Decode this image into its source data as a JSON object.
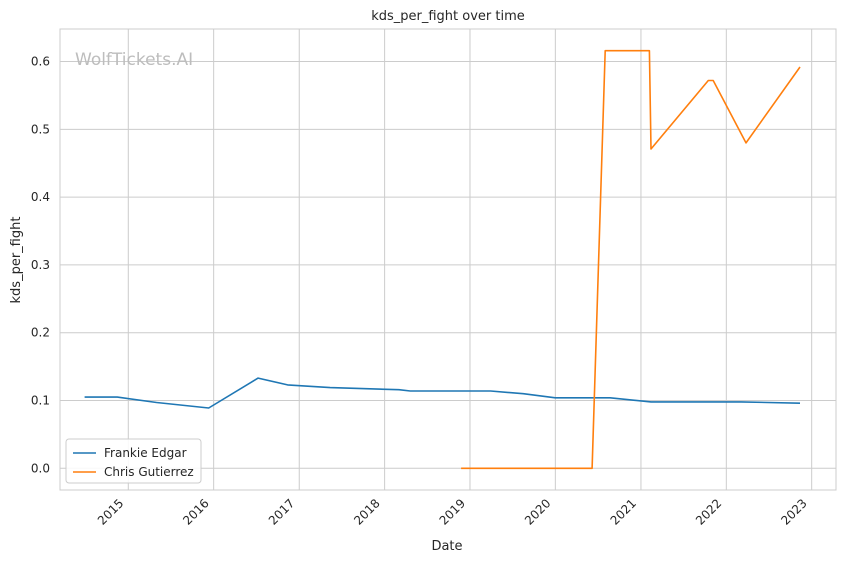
{
  "chart_data": {
    "type": "line",
    "title": "kds_per_fight over time",
    "xlabel": "Date",
    "ylabel": "kds_per_fight",
    "watermark": "WolfTickets.AI",
    "xlim": [
      "2014-03-15",
      "2023-04-15"
    ],
    "ylim": [
      -0.032,
      0.648
    ],
    "x_ticks": [
      "2015-01-01",
      "2016-01-01",
      "2017-01-01",
      "2018-01-01",
      "2019-01-01",
      "2020-01-01",
      "2021-01-01",
      "2022-01-01",
      "2023-01-01"
    ],
    "x_tick_labels": [
      "2015",
      "2016",
      "2017",
      "2018",
      "2019",
      "2020",
      "2021",
      "2022",
      "2023"
    ],
    "y_ticks": [
      0.0,
      0.1,
      0.2,
      0.3,
      0.4,
      0.5,
      0.6
    ],
    "y_tick_labels": [
      "0.0",
      "0.1",
      "0.2",
      "0.3",
      "0.4",
      "0.5",
      "0.6"
    ],
    "grid": true,
    "legend_position": "lower-left",
    "series": [
      {
        "name": "Frankie Edgar",
        "color": "#1f77b4",
        "x": [
          "2014-06-28",
          "2014-11-15",
          "2015-05-02",
          "2015-12-11",
          "2016-07-09",
          "2016-11-12",
          "2017-05-13",
          "2018-03-03",
          "2018-04-21",
          "2019-03-30",
          "2019-08-17",
          "2020-01-01",
          "2020-08-22",
          "2021-02-13",
          "2022-03-05",
          "2022-11-12"
        ],
        "y": [
          0.105,
          0.105,
          0.097,
          0.089,
          0.133,
          0.123,
          0.119,
          0.116,
          0.114,
          0.114,
          0.11,
          0.104,
          0.104,
          0.098,
          0.098,
          0.096
        ]
      },
      {
        "name": "Chris Gutierrez",
        "color": "#ff7f0e",
        "x": [
          "2018-11-24",
          "2019-08-03",
          "2020-06-06",
          "2020-08-01",
          "2021-02-06",
          "2021-02-13",
          "2021-10-16",
          "2021-11-06",
          "2022-03-26",
          "2022-11-12"
        ],
        "y": [
          0.0,
          0.0,
          0.0,
          0.616,
          0.616,
          0.471,
          0.572,
          0.572,
          0.48,
          0.592
        ]
      }
    ]
  }
}
